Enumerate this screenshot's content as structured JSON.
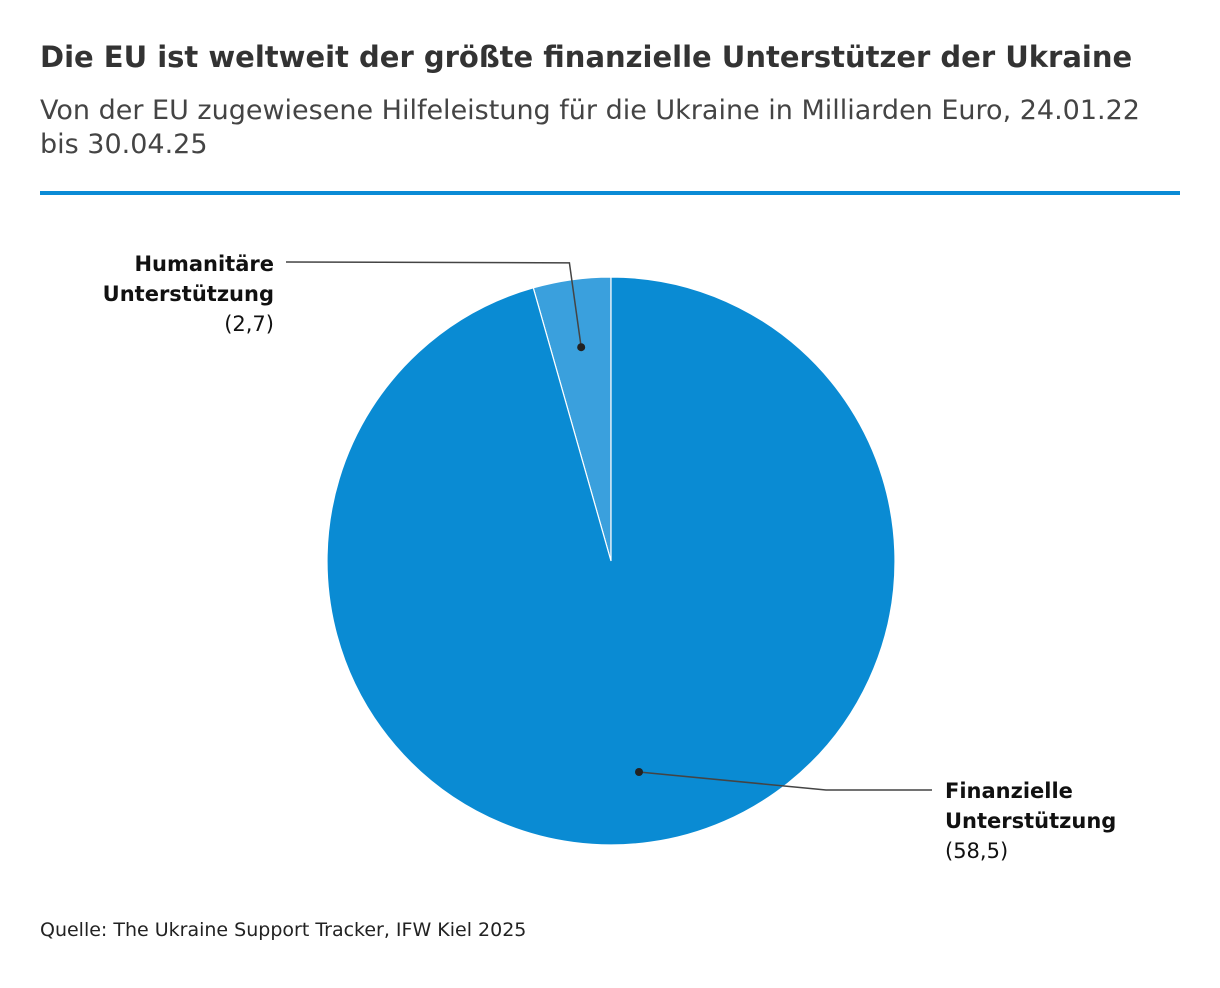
{
  "header": {
    "title": "Die EU ist weltweit der größte finanzielle Unterstützer der Ukraine",
    "subtitle": "Von der EU zugewiesene Hilfeleistung für die Ukraine in Milliarden Euro, 24.01.22 bis 30.04.25"
  },
  "accent_color": "#0a8bd6",
  "chart_data": {
    "type": "pie",
    "title": "Die EU ist weltweit der größte finanzielle Unterstützer der Ukraine",
    "subtitle": "Von der EU zugewiesene Hilfeleistung für die Ukraine in Milliarden Euro, 24.01.22 bis 30.04.25",
    "slices": [
      {
        "name_line1": "Humanitäre",
        "name_line2": "Unterstützung",
        "value": 2.7,
        "value_label": "(2,7)",
        "color": "#3aa0dd"
      },
      {
        "name_line1": "Finanzielle",
        "name_line2": "Unterstützung",
        "value": 58.5,
        "value_label": "(58,5)",
        "color": "#0a8bd3"
      }
    ],
    "start": "12 o'clock",
    "direction": "counterclockwise",
    "legend": "none"
  },
  "footer": {
    "source": "Quelle: The Ukraine Support Tracker, IFW Kiel 2025"
  }
}
